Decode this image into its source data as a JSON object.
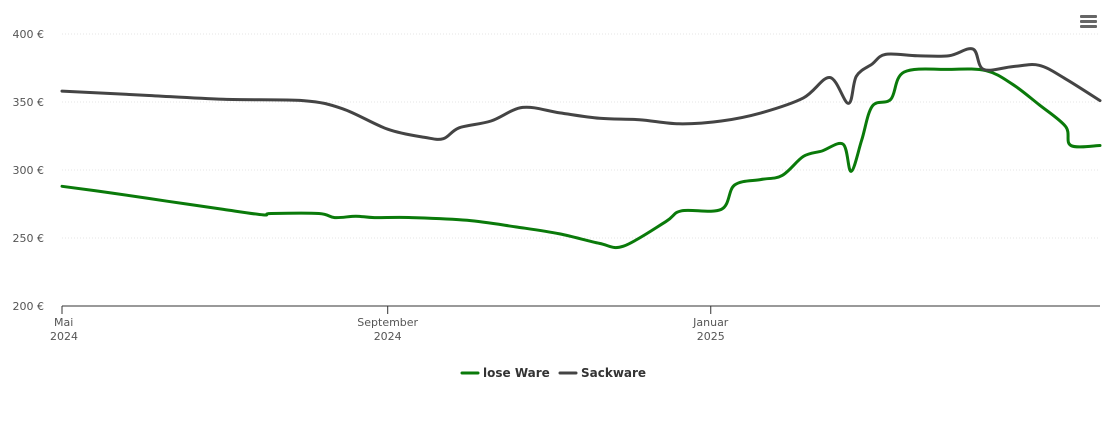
{
  "chart_data": {
    "type": "line",
    "title": "",
    "xlabel": "",
    "ylabel": "",
    "ylim": [
      200,
      400
    ],
    "y_ticks": [
      {
        "value": 200,
        "label": "200 €"
      },
      {
        "value": 250,
        "label": "250 €"
      },
      {
        "value": 300,
        "label": "300 €"
      },
      {
        "value": 350,
        "label": "350 €"
      },
      {
        "value": 400,
        "label": "400 €"
      }
    ],
    "x_range": [
      "2024-05-01",
      "2025-05-28"
    ],
    "x_ticks": [
      {
        "date": "2024-05-01",
        "month": "Mai",
        "year": "2024"
      },
      {
        "date": "2024-09-01",
        "month": "September",
        "year": "2024"
      },
      {
        "date": "2025-01-01",
        "month": "Januar",
        "year": "2025"
      }
    ],
    "grid": true,
    "legend_position": "bottom-center",
    "series": [
      {
        "name": "lose Ware",
        "color": "#0a7a0a",
        "points": [
          [
            "2024-05-01",
            288
          ],
          [
            "2024-05-20",
            283
          ],
          [
            "2024-06-10",
            277
          ],
          [
            "2024-07-01",
            271
          ],
          [
            "2024-07-16",
            267
          ],
          [
            "2024-07-19",
            268
          ],
          [
            "2024-08-06",
            268
          ],
          [
            "2024-08-12",
            265
          ],
          [
            "2024-08-20",
            266
          ],
          [
            "2024-08-27",
            265
          ],
          [
            "2024-09-10",
            265
          ],
          [
            "2024-10-01",
            263
          ],
          [
            "2024-10-20",
            258
          ],
          [
            "2024-11-05",
            253
          ],
          [
            "2024-11-20",
            246
          ],
          [
            "2024-11-29",
            244
          ],
          [
            "2024-12-15",
            262
          ],
          [
            "2024-12-21",
            270
          ],
          [
            "2025-01-05",
            271
          ],
          [
            "2025-01-10",
            289
          ],
          [
            "2025-01-20",
            293
          ],
          [
            "2025-01-28",
            296
          ],
          [
            "2025-02-05",
            310
          ],
          [
            "2025-02-12",
            314
          ],
          [
            "2025-02-20",
            319
          ],
          [
            "2025-02-23",
            299
          ],
          [
            "2025-02-27",
            322
          ],
          [
            "2025-03-03",
            347
          ],
          [
            "2025-03-10",
            352
          ],
          [
            "2025-03-15",
            372
          ],
          [
            "2025-04-01",
            374
          ],
          [
            "2025-04-15",
            373
          ],
          [
            "2025-04-25",
            363
          ],
          [
            "2025-05-05",
            348
          ],
          [
            "2025-05-15",
            332
          ],
          [
            "2025-05-17",
            318
          ],
          [
            "2025-05-28",
            318
          ]
        ]
      },
      {
        "name": "Sackware",
        "color": "#444444",
        "points": [
          [
            "2024-05-01",
            358
          ],
          [
            "2024-06-01",
            355
          ],
          [
            "2024-07-01",
            352
          ],
          [
            "2024-07-31",
            351
          ],
          [
            "2024-08-15",
            345
          ],
          [
            "2024-09-01",
            330
          ],
          [
            "2024-09-15",
            324
          ],
          [
            "2024-09-22",
            323
          ],
          [
            "2024-09-28",
            331
          ],
          [
            "2024-10-10",
            336
          ],
          [
            "2024-10-22",
            346
          ],
          [
            "2024-11-05",
            342
          ],
          [
            "2024-11-20",
            338
          ],
          [
            "2024-12-05",
            337
          ],
          [
            "2024-12-20",
            334
          ],
          [
            "2025-01-05",
            336
          ],
          [
            "2025-01-20",
            342
          ],
          [
            "2025-02-05",
            353
          ],
          [
            "2025-02-15",
            368
          ],
          [
            "2025-02-22",
            349
          ],
          [
            "2025-02-25",
            369
          ],
          [
            "2025-03-03",
            378
          ],
          [
            "2025-03-08",
            385
          ],
          [
            "2025-03-20",
            384
          ],
          [
            "2025-04-01",
            384
          ],
          [
            "2025-04-10",
            389
          ],
          [
            "2025-04-14",
            374
          ],
          [
            "2025-04-25",
            376
          ],
          [
            "2025-05-05",
            377
          ],
          [
            "2025-05-15",
            367
          ],
          [
            "2025-05-28",
            351
          ]
        ]
      }
    ]
  },
  "menu": {
    "icon": "hamburger-menu-icon"
  }
}
